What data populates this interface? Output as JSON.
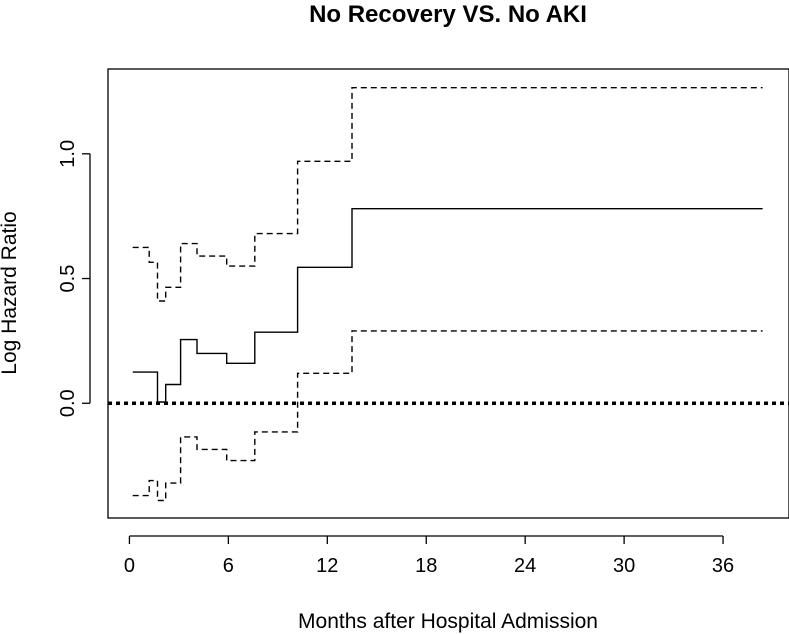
{
  "chart_data": {
    "type": "line",
    "title": "No Recovery VS. No AKI",
    "xlabel": "Months after Hospital Admission",
    "ylabel": "Log Hazard Ratio",
    "xlim": [
      -1.3,
      40
    ],
    "ylim": [
      -0.46,
      1.34
    ],
    "x_ticks": [
      0,
      6,
      12,
      18,
      24,
      30,
      36
    ],
    "x_tick_labels": [
      "0",
      "6",
      "12",
      "18",
      "24",
      "30",
      "36"
    ],
    "y_ticks": [
      0.0,
      0.5,
      1.0
    ],
    "y_tick_labels": [
      "0.0",
      "0.5",
      "1.0"
    ],
    "grid": false,
    "legend": "none",
    "reference_line": {
      "y": 0,
      "style": "dotted"
    },
    "series": [
      {
        "role": "estimate",
        "style": "solid",
        "step": true,
        "x": [
          0.2,
          1.7,
          2.2,
          3.1,
          4.1,
          5.9,
          7.6,
          10.2,
          13.5,
          38.4
        ],
        "y": [
          0.125,
          0.005,
          0.075,
          0.255,
          0.2,
          0.16,
          0.285,
          0.545,
          0.78,
          0.78
        ]
      },
      {
        "role": "upper",
        "style": "dashed",
        "step": true,
        "x": [
          0.2,
          1.2,
          1.7,
          2.2,
          3.1,
          4.1,
          5.9,
          7.6,
          10.2,
          13.5,
          38.4
        ],
        "y": [
          0.625,
          0.565,
          0.41,
          0.465,
          0.64,
          0.59,
          0.55,
          0.68,
          0.97,
          1.265,
          1.265
        ]
      },
      {
        "role": "lower",
        "style": "dashed",
        "step": true,
        "x": [
          0.2,
          1.2,
          1.7,
          2.2,
          3.1,
          4.1,
          5.9,
          7.6,
          10.2,
          13.5,
          38.4
        ],
        "y": [
          -0.37,
          -0.31,
          -0.39,
          -0.32,
          -0.135,
          -0.185,
          -0.23,
          -0.115,
          0.12,
          0.29,
          0.29
        ]
      }
    ]
  }
}
